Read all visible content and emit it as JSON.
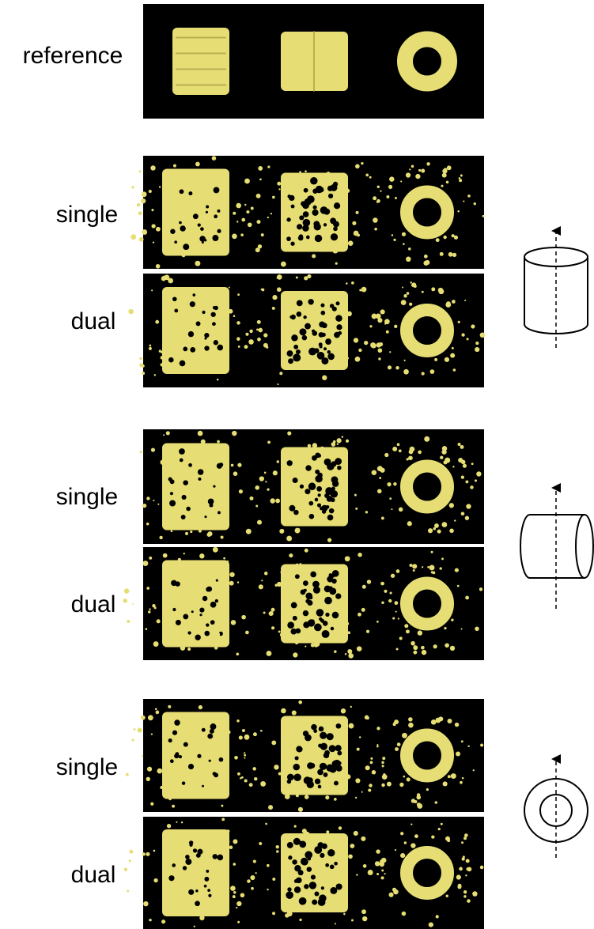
{
  "panels": [
    {
      "label": "reference"
    },
    {
      "label": "single"
    },
    {
      "label": "dual"
    },
    {
      "label": "single"
    },
    {
      "label": "dual"
    },
    {
      "label": "single"
    },
    {
      "label": "dual"
    }
  ]
}
